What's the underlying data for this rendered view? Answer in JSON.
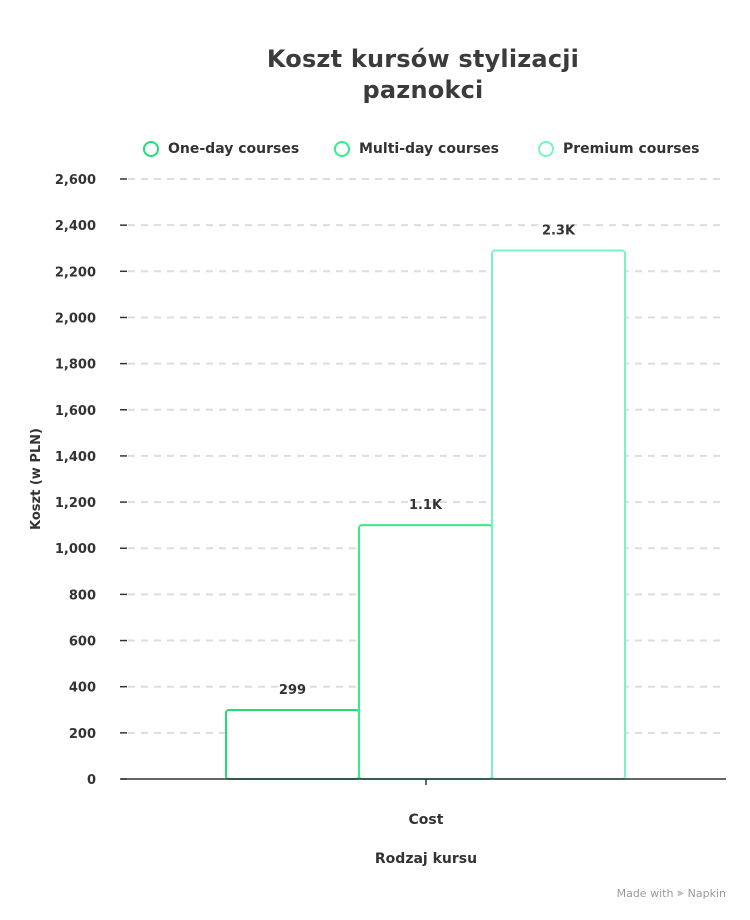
{
  "title": "Koszt kursów stylizacji paznokci",
  "legend": [
    {
      "label": "One-day courses",
      "color": "#22dd77"
    },
    {
      "label": "Multi-day courses",
      "color": "#33ee88"
    },
    {
      "label": "Premium courses",
      "color": "#77f5c0"
    }
  ],
  "footer": {
    "made_with": "Made with",
    "brand": "Napkin"
  },
  "chart_data": {
    "type": "bar",
    "title": "Koszt kursów stylizacji paznokci",
    "xlabel": "Rodzaj kursu",
    "ylabel": "Koszt (w PLN)",
    "categories": [
      "Cost"
    ],
    "series": [
      {
        "name": "One-day courses",
        "values": [
          299
        ],
        "label": "299",
        "color": "#22dd77"
      },
      {
        "name": "Multi-day courses",
        "values": [
          1100
        ],
        "label": "1.1K",
        "color": "#33ee88"
      },
      {
        "name": "Premium courses",
        "values": [
          2290
        ],
        "label": "2.3K",
        "color": "#77f5c0"
      }
    ],
    "ylim": [
      0,
      2600
    ],
    "yticks": [
      "0",
      "200",
      "400",
      "600",
      "800",
      "1,000",
      "1,200",
      "1,400",
      "1,600",
      "1,800",
      "2,000",
      "2,200",
      "2,400",
      "2,600"
    ],
    "grid": true,
    "legend_position": "top"
  }
}
